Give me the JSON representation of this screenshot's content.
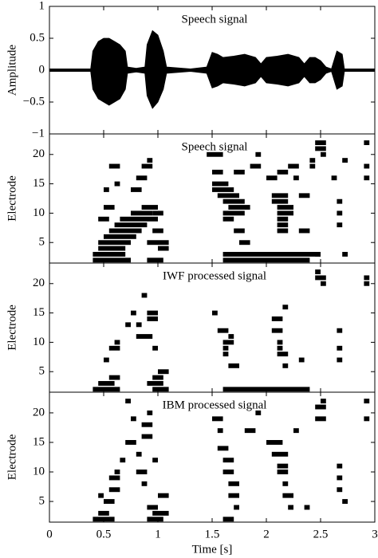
{
  "chart_data": [
    {
      "type": "envelope",
      "title": "Speech signal",
      "ylabel": "Amplitude",
      "xlim": [
        0,
        3
      ],
      "xticks": [
        0,
        0.5,
        1,
        1.5,
        2,
        2.5,
        3
      ],
      "ylim": [
        -1,
        1
      ],
      "yticks": [
        {
          "value": -1,
          "label": "−1"
        },
        {
          "value": -0.5,
          "label": "−0.5"
        },
        0,
        0.5,
        1
      ],
      "x": [
        0,
        0.38,
        0.4,
        0.45,
        0.5,
        0.55,
        0.6,
        0.65,
        0.7,
        0.72,
        0.8,
        0.88,
        0.9,
        0.95,
        1.0,
        1.05,
        1.08,
        1.3,
        1.45,
        1.5,
        1.55,
        1.6,
        1.7,
        1.8,
        1.9,
        1.95,
        2.0,
        2.1,
        2.2,
        2.3,
        2.35,
        2.4,
        2.45,
        2.5,
        2.55,
        2.6,
        2.65,
        2.7,
        2.72,
        3.0
      ],
      "upper": [
        0.02,
        0.02,
        0.3,
        0.45,
        0.5,
        0.5,
        0.45,
        0.4,
        0.3,
        0.05,
        0.03,
        0.05,
        0.4,
        0.62,
        0.55,
        0.3,
        0.05,
        0.02,
        0.05,
        0.28,
        0.25,
        0.2,
        0.22,
        0.25,
        0.2,
        0.1,
        0.2,
        0.22,
        0.25,
        0.2,
        0.1,
        0.2,
        0.2,
        0.15,
        0.05,
        0.02,
        0.3,
        0.25,
        0.02,
        0.02
      ],
      "lower": [
        -0.02,
        -0.02,
        -0.3,
        -0.45,
        -0.5,
        -0.55,
        -0.5,
        -0.45,
        -0.3,
        -0.05,
        -0.03,
        -0.05,
        -0.4,
        -0.6,
        -0.5,
        -0.3,
        -0.05,
        -0.02,
        -0.05,
        -0.28,
        -0.25,
        -0.2,
        -0.22,
        -0.25,
        -0.2,
        -0.1,
        -0.2,
        -0.22,
        -0.25,
        -0.2,
        -0.1,
        -0.2,
        -0.2,
        -0.15,
        -0.05,
        -0.02,
        -0.3,
        -0.25,
        -0.02,
        -0.02
      ],
      "color": "#000000"
    },
    {
      "type": "raster",
      "title": "Speech signal",
      "ylabel": "Electrode",
      "xlim": [
        0,
        3
      ],
      "xticks": [
        0,
        0.5,
        1,
        1.5,
        2,
        2.5,
        3
      ],
      "ylim": [
        1.5,
        23.5
      ],
      "yticks": [
        5,
        10,
        15,
        20
      ],
      "color": "#000000",
      "segments": [
        [
          0.4,
          0.75,
          2
        ],
        [
          0.4,
          0.7,
          3
        ],
        [
          0.45,
          0.7,
          4
        ],
        [
          0.45,
          0.75,
          5
        ],
        [
          0.5,
          0.8,
          6
        ],
        [
          0.55,
          0.85,
          7
        ],
        [
          0.6,
          0.9,
          8
        ],
        [
          0.65,
          1.0,
          9
        ],
        [
          0.75,
          0.95,
          10
        ],
        [
          0.95,
          1.05,
          10
        ],
        [
          0.85,
          1.0,
          11
        ],
        [
          0.45,
          0.55,
          9
        ],
        [
          0.5,
          0.6,
          11
        ],
        [
          0.5,
          0.55,
          14
        ],
        [
          0.6,
          0.65,
          15
        ],
        [
          0.75,
          0.85,
          14
        ],
        [
          0.8,
          0.9,
          16
        ],
        [
          0.85,
          0.95,
          18
        ],
        [
          0.9,
          0.95,
          19
        ],
        [
          0.55,
          0.65,
          18
        ],
        [
          0.9,
          1.05,
          2
        ],
        [
          0.9,
          1.1,
          5
        ],
        [
          0.95,
          1.05,
          7
        ],
        [
          1.0,
          1.1,
          4
        ],
        [
          1.45,
          1.6,
          20
        ],
        [
          1.5,
          1.6,
          17
        ],
        [
          1.5,
          1.65,
          15
        ],
        [
          1.5,
          1.7,
          14
        ],
        [
          1.55,
          1.75,
          13
        ],
        [
          1.6,
          1.8,
          12
        ],
        [
          1.65,
          1.85,
          11
        ],
        [
          1.6,
          1.8,
          10
        ],
        [
          1.6,
          1.7,
          9
        ],
        [
          1.6,
          2.4,
          2
        ],
        [
          1.6,
          2.5,
          3
        ],
        [
          1.7,
          1.8,
          7
        ],
        [
          1.75,
          1.85,
          5
        ],
        [
          1.7,
          1.8,
          17
        ],
        [
          1.85,
          1.95,
          18
        ],
        [
          1.9,
          1.95,
          20
        ],
        [
          2.05,
          2.2,
          13
        ],
        [
          2.05,
          2.2,
          12
        ],
        [
          2.1,
          2.25,
          11
        ],
        [
          2.1,
          2.25,
          10
        ],
        [
          2.1,
          2.2,
          9
        ],
        [
          2.1,
          2.2,
          8
        ],
        [
          2.1,
          2.2,
          7
        ],
        [
          2.0,
          2.1,
          16
        ],
        [
          2.1,
          2.2,
          17
        ],
        [
          2.2,
          2.3,
          18
        ],
        [
          2.25,
          2.3,
          16
        ],
        [
          2.3,
          2.4,
          13
        ],
        [
          2.3,
          2.4,
          7
        ],
        [
          2.4,
          2.45,
          19
        ],
        [
          2.45,
          2.55,
          21
        ],
        [
          2.45,
          2.55,
          22
        ],
        [
          2.5,
          2.55,
          20
        ],
        [
          2.4,
          2.45,
          18
        ],
        [
          2.6,
          2.65,
          16
        ],
        [
          2.65,
          2.7,
          12
        ],
        [
          2.65,
          2.7,
          10
        ],
        [
          2.65,
          2.7,
          8
        ],
        [
          2.7,
          2.75,
          19
        ],
        [
          2.9,
          2.95,
          22
        ],
        [
          2.9,
          2.95,
          18
        ],
        [
          2.9,
          2.95,
          16
        ],
        [
          2.45,
          2.5,
          3
        ],
        [
          2.7,
          2.75,
          3
        ]
      ]
    },
    {
      "type": "raster",
      "title": "IWF processed signal",
      "ylabel": "Electrode",
      "xlim": [
        0,
        3
      ],
      "xticks": [
        0,
        0.5,
        1,
        1.5,
        2,
        2.5,
        3
      ],
      "ylim": [
        1.5,
        23.5
      ],
      "yticks": [
        5,
        10,
        15,
        20
      ],
      "color": "#000000",
      "segments": [
        [
          0.4,
          0.65,
          2
        ],
        [
          0.45,
          0.6,
          3
        ],
        [
          0.55,
          0.65,
          4
        ],
        [
          0.55,
          0.65,
          9
        ],
        [
          0.6,
          0.65,
          10
        ],
        [
          0.5,
          0.55,
          7
        ],
        [
          0.7,
          0.75,
          13
        ],
        [
          0.75,
          0.8,
          15
        ],
        [
          0.85,
          0.9,
          18
        ],
        [
          0.8,
          0.95,
          11
        ],
        [
          0.8,
          0.85,
          13
        ],
        [
          0.9,
          1.0,
          15
        ],
        [
          0.9,
          1.0,
          14
        ],
        [
          0.9,
          1.05,
          3
        ],
        [
          0.95,
          1.1,
          2
        ],
        [
          0.95,
          1.05,
          4
        ],
        [
          1.0,
          1.1,
          5
        ],
        [
          0.95,
          1.0,
          9
        ],
        [
          1.5,
          1.55,
          15
        ],
        [
          1.55,
          1.65,
          12
        ],
        [
          1.6,
          1.7,
          10
        ],
        [
          1.6,
          1.65,
          8
        ],
        [
          1.6,
          1.65,
          9
        ],
        [
          1.65,
          1.7,
          11
        ],
        [
          1.6,
          2.4,
          2
        ],
        [
          1.65,
          1.75,
          6
        ],
        [
          2.05,
          2.15,
          14
        ],
        [
          2.05,
          2.15,
          12
        ],
        [
          2.1,
          2.15,
          10
        ],
        [
          2.1,
          2.15,
          9
        ],
        [
          2.1,
          2.2,
          8
        ],
        [
          2.15,
          2.2,
          6
        ],
        [
          2.15,
          2.2,
          16
        ],
        [
          2.3,
          2.35,
          7
        ],
        [
          2.45,
          2.55,
          21
        ],
        [
          2.45,
          2.5,
          22
        ],
        [
          2.5,
          2.55,
          20
        ],
        [
          2.65,
          2.7,
          12
        ],
        [
          2.65,
          2.7,
          9
        ],
        [
          2.65,
          2.7,
          7
        ],
        [
          2.9,
          2.95,
          21
        ],
        [
          2.9,
          2.95,
          20
        ]
      ]
    },
    {
      "type": "raster",
      "title": "IBM processed signal",
      "ylabel": "Electrode",
      "xlabel": "Time [s]",
      "xlim": [
        0,
        3
      ],
      "xticks": [
        0,
        0.5,
        1,
        1.5,
        2,
        2.5,
        3
      ],
      "ylim": [
        1.5,
        23.5
      ],
      "yticks": [
        5,
        10,
        15,
        20
      ],
      "color": "#000000",
      "segments": [
        [
          0.4,
          0.6,
          2
        ],
        [
          0.45,
          0.55,
          3
        ],
        [
          0.5,
          0.6,
          5
        ],
        [
          0.55,
          0.65,
          7
        ],
        [
          0.55,
          0.65,
          9
        ],
        [
          0.6,
          0.65,
          10
        ],
        [
          0.45,
          0.5,
          6
        ],
        [
          0.65,
          0.7,
          12
        ],
        [
          0.7,
          0.8,
          15
        ],
        [
          0.75,
          0.8,
          19
        ],
        [
          0.8,
          0.85,
          13
        ],
        [
          0.85,
          0.95,
          16
        ],
        [
          0.85,
          0.95,
          18
        ],
        [
          0.9,
          0.95,
          20
        ],
        [
          0.8,
          0.9,
          10
        ],
        [
          0.85,
          0.9,
          8
        ],
        [
          0.9,
          1.0,
          4
        ],
        [
          0.9,
          1.05,
          2
        ],
        [
          0.95,
          1.1,
          3
        ],
        [
          1.0,
          1.1,
          6
        ],
        [
          0.7,
          0.75,
          22
        ],
        [
          0.95,
          1.0,
          12
        ],
        [
          1.5,
          1.6,
          19
        ],
        [
          1.55,
          1.6,
          17
        ],
        [
          1.55,
          1.65,
          14
        ],
        [
          1.6,
          1.7,
          12
        ],
        [
          1.6,
          1.7,
          10
        ],
        [
          1.65,
          1.75,
          8
        ],
        [
          1.65,
          1.75,
          6
        ],
        [
          1.7,
          1.75,
          4
        ],
        [
          1.6,
          1.7,
          2
        ],
        [
          1.8,
          1.9,
          17
        ],
        [
          1.9,
          1.95,
          20
        ],
        [
          2.0,
          2.15,
          15
        ],
        [
          2.05,
          2.2,
          13
        ],
        [
          2.1,
          2.2,
          11
        ],
        [
          2.1,
          2.2,
          10
        ],
        [
          2.15,
          2.2,
          8
        ],
        [
          2.15,
          2.25,
          6
        ],
        [
          2.2,
          2.25,
          4
        ],
        [
          2.25,
          2.3,
          17
        ],
        [
          2.35,
          2.4,
          4
        ],
        [
          2.45,
          2.55,
          21
        ],
        [
          2.45,
          2.55,
          19
        ],
        [
          2.5,
          2.55,
          22
        ],
        [
          2.65,
          2.7,
          11
        ],
        [
          2.65,
          2.7,
          9
        ],
        [
          2.65,
          2.7,
          7
        ],
        [
          2.7,
          2.75,
          5
        ],
        [
          2.9,
          2.95,
          22
        ],
        [
          2.9,
          2.95,
          19
        ]
      ]
    }
  ]
}
